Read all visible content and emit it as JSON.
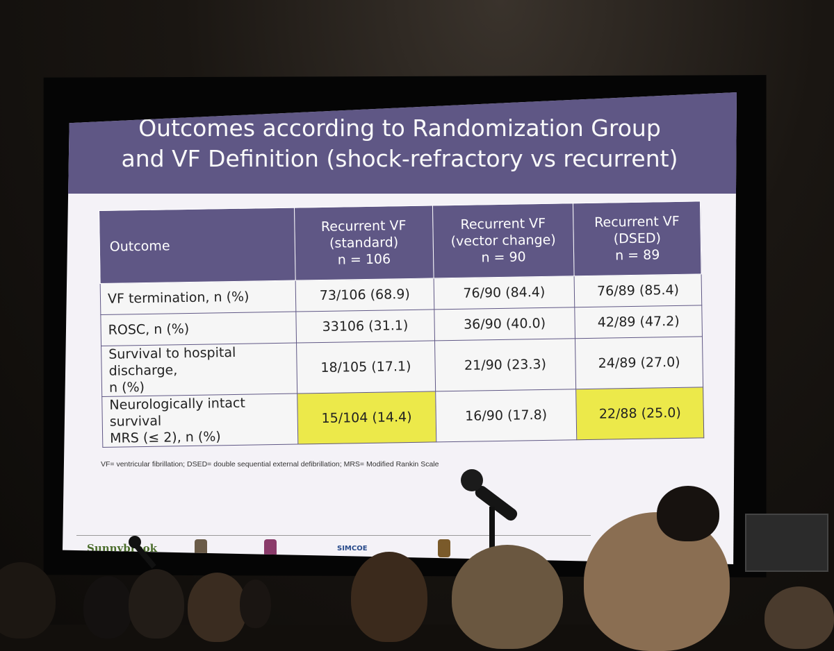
{
  "slide": {
    "title_line1": "Outcomes according to Randomization Group",
    "title_line2": "and VF Definition (shock-refractory vs recurrent)",
    "table": {
      "columns": [
        {
          "line1": "Outcome",
          "line2": "",
          "line3": ""
        },
        {
          "line1": "Recurrent VF",
          "line2": "(standard)",
          "line3": "n = 106"
        },
        {
          "line1": "Recurrent VF",
          "line2": "(vector change)",
          "line3": "n = 90"
        },
        {
          "line1": "Recurrent VF",
          "line2": "(DSED)",
          "line3": "n = 89"
        }
      ],
      "rows": [
        {
          "label_line1": "VF termination, n (%)",
          "label_line2": "",
          "values": [
            "73/106 (68.9)",
            "76/90 (84.4)",
            "76/89 (85.4)"
          ]
        },
        {
          "label_line1": "ROSC, n (%)",
          "label_line2": "",
          "values": [
            "33106 (31.1)",
            "36/90 (40.0)",
            "42/89 (47.2)"
          ]
        },
        {
          "label_line1": "Survival to hospital discharge,",
          "label_line2": "n (%)",
          "values": [
            "18/105 (17.1)",
            "21/90 (23.3)",
            "24/89 (27.0)"
          ]
        },
        {
          "label_line1": "Neurologically intact survival",
          "label_line2": "MRS (≤ 2), n (%)",
          "values": [
            "15/104 (14.4)",
            "16/90 (17.8)",
            "22/88 (25.0)"
          ]
        }
      ]
    },
    "footnote": "VF= ventricular fibrillation; DSED= double sequential external defibrillation; MRS= Modified Rankin Scale",
    "logos": {
      "sunnybrook": "Sunnybrook",
      "simcoe": "SIMCOE"
    }
  },
  "colors": {
    "header": "#5f5785",
    "highlight": "#ece94a"
  }
}
